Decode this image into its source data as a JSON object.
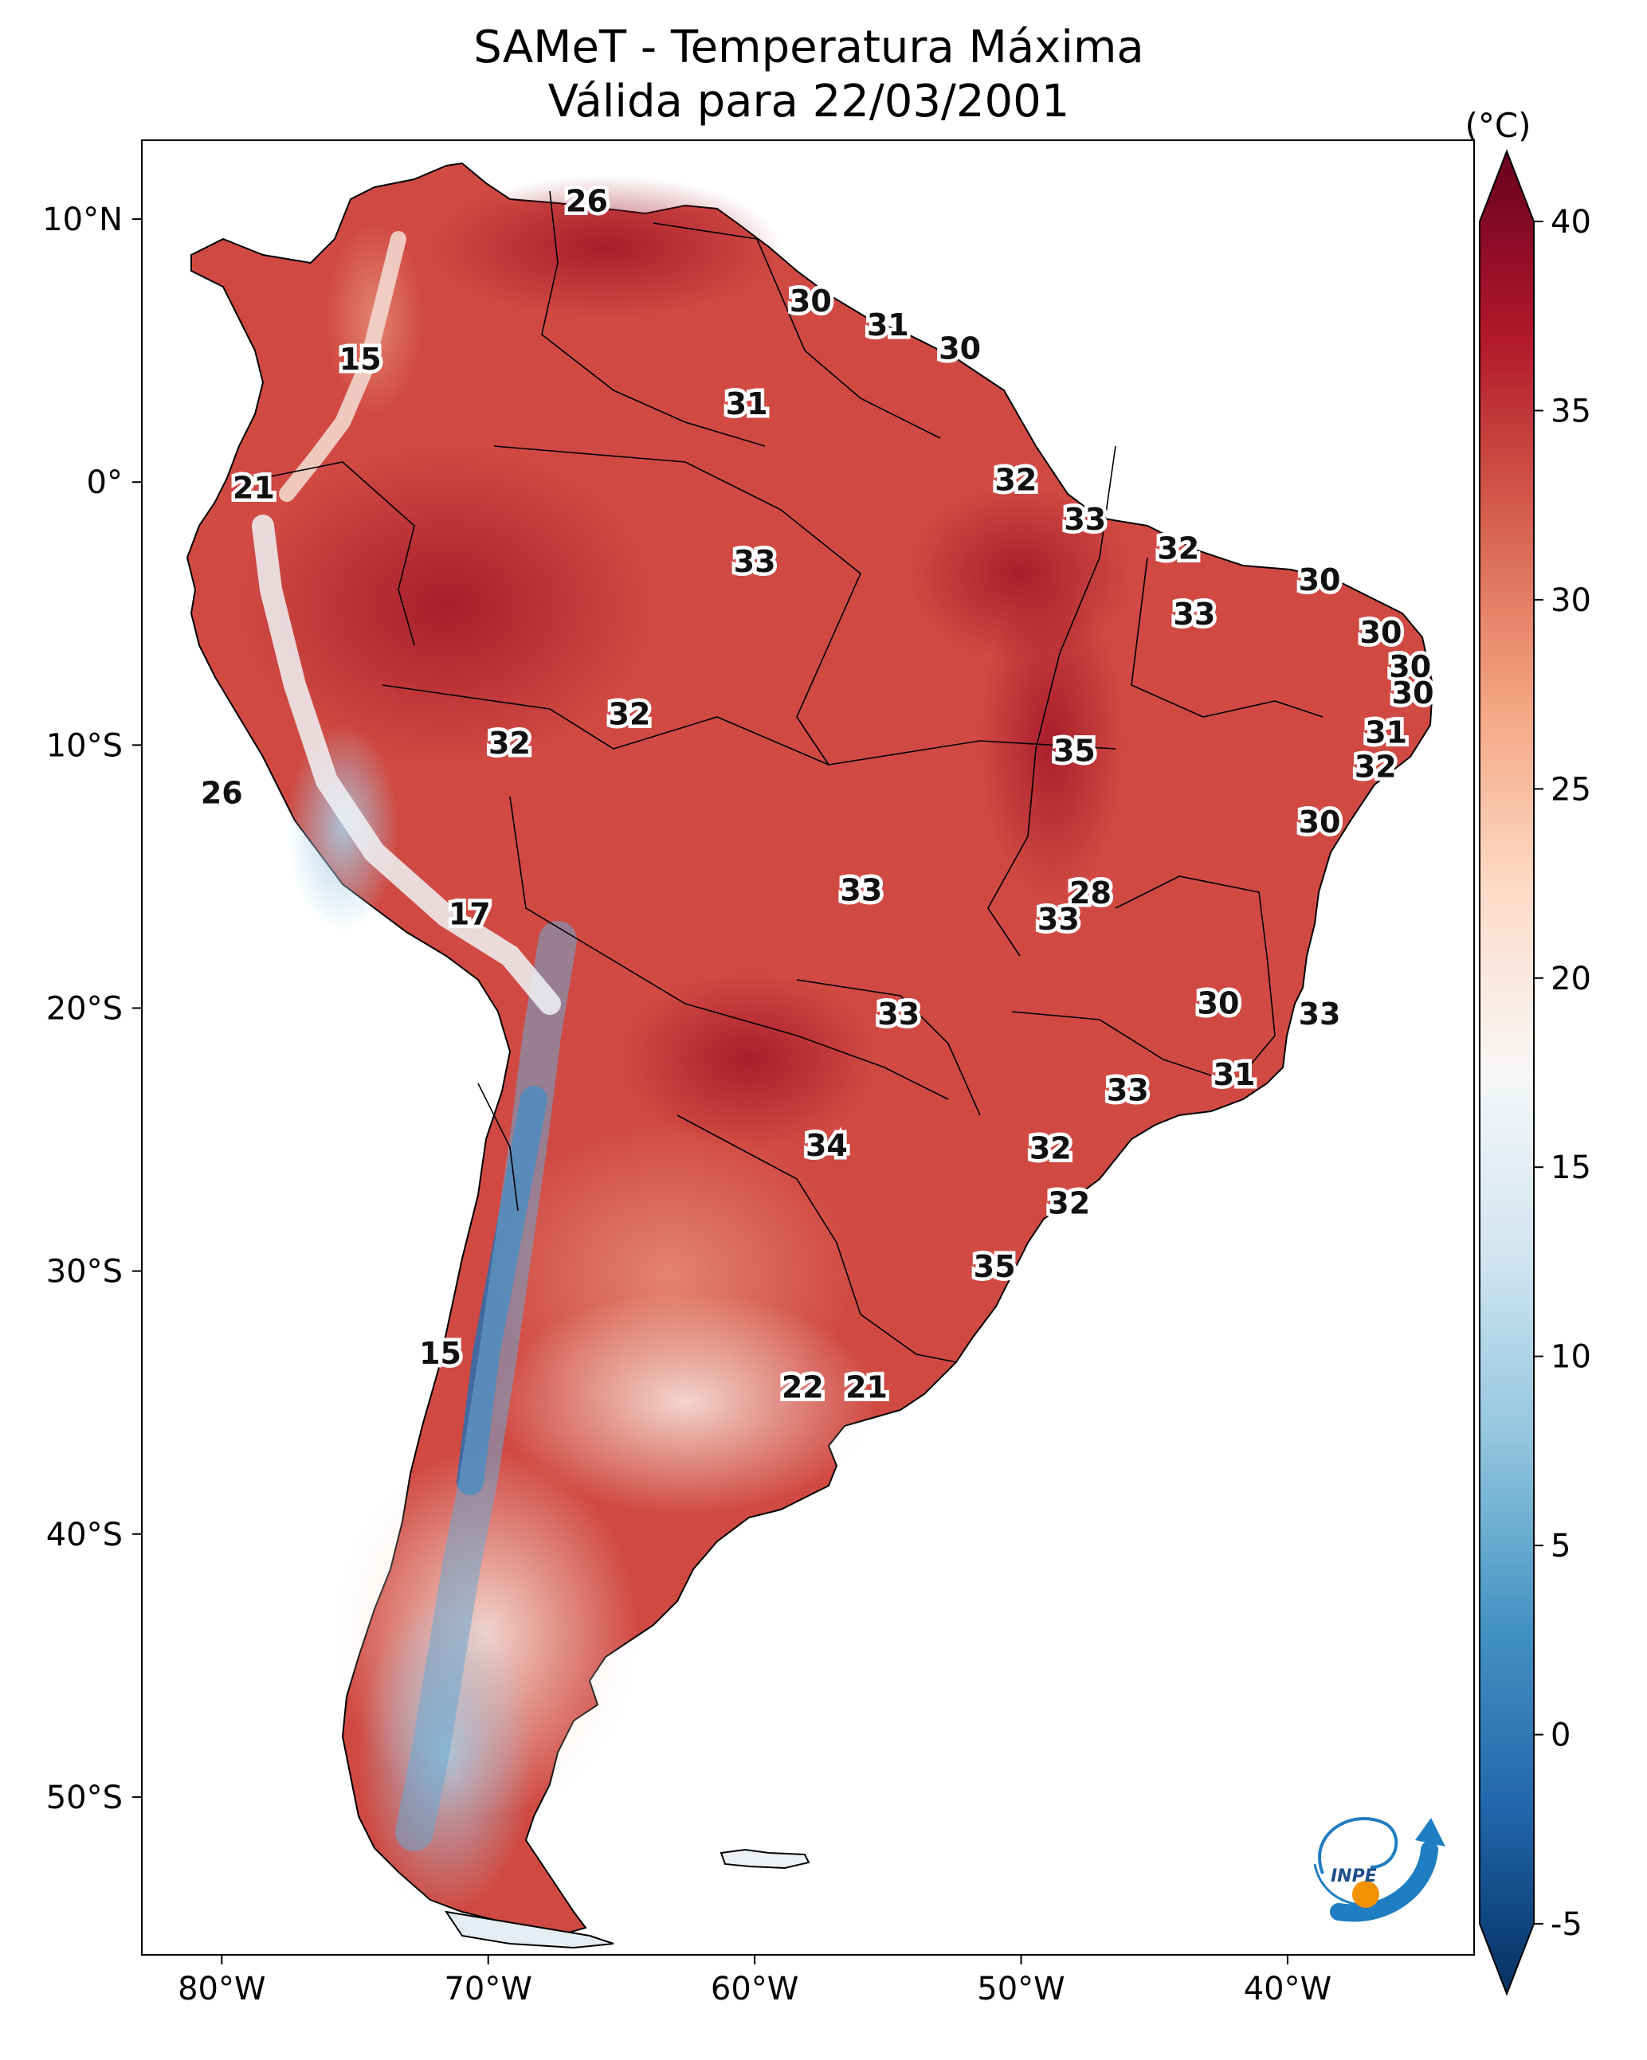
{
  "title": {
    "line1": "SAMeT - Temperatura Máxima",
    "line2": "Válida para 22/03/2001"
  },
  "map": {
    "lon_range": [
      -83,
      -33
    ],
    "lat_range": [
      -56,
      13
    ],
    "lon_ticks": [
      {
        "value": -80,
        "label": "80°W"
      },
      {
        "value": -70,
        "label": "70°W"
      },
      {
        "value": -60,
        "label": "60°W"
      },
      {
        "value": -50,
        "label": "50°W"
      },
      {
        "value": -40,
        "label": "40°W"
      }
    ],
    "lat_ticks": [
      {
        "value": 10,
        "label": "10°N"
      },
      {
        "value": 0,
        "label": "0°"
      },
      {
        "value": -10,
        "label": "10°S"
      },
      {
        "value": -20,
        "label": "20°S"
      },
      {
        "value": -30,
        "label": "30°S"
      },
      {
        "value": -40,
        "label": "40°S"
      },
      {
        "value": -50,
        "label": "50°S"
      }
    ],
    "temperature_labels": [
      {
        "lon": -66.3,
        "lat": 10.6,
        "text": "26"
      },
      {
        "lon": -74.8,
        "lat": 4.6,
        "text": "15"
      },
      {
        "lon": -78.8,
        "lat": -0.3,
        "text": "21"
      },
      {
        "lon": -57.9,
        "lat": 6.8,
        "text": "30"
      },
      {
        "lon": -55.0,
        "lat": 5.9,
        "text": "31"
      },
      {
        "lon": -52.3,
        "lat": 5.0,
        "text": "30"
      },
      {
        "lon": -60.3,
        "lat": 2.9,
        "text": "31"
      },
      {
        "lon": -50.2,
        "lat": 0.0,
        "text": "32"
      },
      {
        "lon": -60.0,
        "lat": -3.1,
        "text": "33"
      },
      {
        "lon": -47.6,
        "lat": -1.5,
        "text": "33"
      },
      {
        "lon": -44.1,
        "lat": -2.6,
        "text": "32"
      },
      {
        "lon": -38.8,
        "lat": -3.8,
        "text": "30"
      },
      {
        "lon": -43.5,
        "lat": -5.1,
        "text": "33"
      },
      {
        "lon": -36.5,
        "lat": -5.8,
        "text": "30"
      },
      {
        "lon": -35.4,
        "lat": -7.1,
        "text": "30"
      },
      {
        "lon": -35.3,
        "lat": -8.1,
        "text": "30"
      },
      {
        "lon": -36.3,
        "lat": -9.6,
        "text": "31"
      },
      {
        "lon": -36.7,
        "lat": -10.9,
        "text": "32"
      },
      {
        "lon": -38.8,
        "lat": -13.0,
        "text": "30"
      },
      {
        "lon": -48.0,
        "lat": -10.3,
        "text": "35"
      },
      {
        "lon": -64.7,
        "lat": -8.9,
        "text": "32"
      },
      {
        "lon": -69.2,
        "lat": -10.0,
        "text": "32"
      },
      {
        "lon": -80.0,
        "lat": -11.9,
        "text": "26"
      },
      {
        "lon": -70.7,
        "lat": -16.5,
        "text": "17"
      },
      {
        "lon": -56.0,
        "lat": -15.6,
        "text": "33"
      },
      {
        "lon": -47.4,
        "lat": -15.7,
        "text": "28"
      },
      {
        "lon": -48.6,
        "lat": -16.7,
        "text": "33"
      },
      {
        "lon": -54.6,
        "lat": -20.3,
        "text": "33"
      },
      {
        "lon": -42.6,
        "lat": -19.9,
        "text": "30"
      },
      {
        "lon": -38.8,
        "lat": -20.3,
        "text": "33"
      },
      {
        "lon": -46.0,
        "lat": -23.2,
        "text": "33"
      },
      {
        "lon": -42.0,
        "lat": -22.6,
        "text": "31"
      },
      {
        "lon": -57.3,
        "lat": -25.3,
        "text": "34"
      },
      {
        "lon": -48.9,
        "lat": -25.4,
        "text": "32"
      },
      {
        "lon": -48.2,
        "lat": -27.5,
        "text": "32"
      },
      {
        "lon": -51.0,
        "lat": -29.9,
        "text": "35"
      },
      {
        "lon": -71.8,
        "lat": -33.2,
        "text": "15"
      },
      {
        "lon": -58.2,
        "lat": -34.5,
        "text": "22"
      },
      {
        "lon": -55.8,
        "lat": -34.5,
        "text": "21"
      }
    ]
  },
  "colorbar": {
    "unit": "(°C)",
    "range": [
      -5,
      40
    ],
    "ticks": [
      {
        "value": 40,
        "label": "40"
      },
      {
        "value": 35,
        "label": "35"
      },
      {
        "value": 30,
        "label": "30"
      },
      {
        "value": 25,
        "label": "25"
      },
      {
        "value": 20,
        "label": "20"
      },
      {
        "value": 15,
        "label": "15"
      },
      {
        "value": 10,
        "label": "10"
      },
      {
        "value": 5,
        "label": "5"
      },
      {
        "value": 0,
        "label": "0"
      },
      {
        "value": -5,
        "label": "-5"
      }
    ],
    "colors": [
      "#053061",
      "#2166ac",
      "#4393c3",
      "#92c5de",
      "#d1e5f0",
      "#f7f7f7",
      "#fddbc7",
      "#f4a582",
      "#d6604d",
      "#b2182b",
      "#67001f"
    ]
  },
  "logo": {
    "text": "INPE",
    "colors": {
      "blue": "#1f7ec1",
      "orange": "#f39200"
    }
  }
}
